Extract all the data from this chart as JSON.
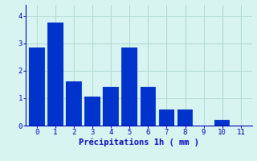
{
  "categories": [
    0,
    1,
    2,
    3,
    4,
    5,
    6,
    7,
    8,
    9,
    10
  ],
  "values": [
    2.85,
    3.75,
    1.6,
    1.05,
    1.4,
    2.85,
    1.4,
    0.6,
    0.6,
    0.0,
    0.2
  ],
  "bar_color": "#0033cc",
  "background_color": "#d8f4f0",
  "grid_color": "#b0d8d4",
  "xlabel": "Précipitations 1h ( mm )",
  "ylim": [
    0,
    4.4
  ],
  "xlim": [
    -0.6,
    11.6
  ],
  "yticks": [
    0,
    1,
    2,
    3,
    4
  ],
  "xticks": [
    0,
    1,
    2,
    3,
    4,
    5,
    6,
    7,
    8,
    9,
    10,
    11
  ],
  "xlabel_color": "#0000bb",
  "tick_color": "#0000bb",
  "bar_width": 0.85,
  "tick_fontsize": 6.5,
  "xlabel_fontsize": 7.5
}
